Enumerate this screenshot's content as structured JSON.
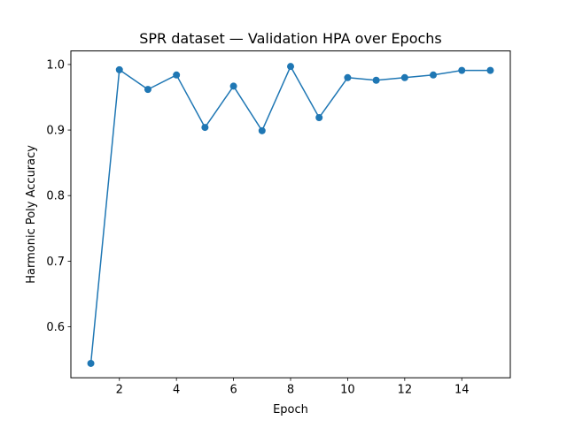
{
  "chart_data": {
    "type": "line",
    "title": "SPR dataset — Validation HPA over Epochs",
    "xlabel": "Epoch",
    "ylabel": "Harmonic Poly Accuracy",
    "xlim": [
      0.3,
      15.7
    ],
    "ylim": [
      0.5221,
      1.0207
    ],
    "xticks": [
      2,
      4,
      6,
      8,
      10,
      12,
      14
    ],
    "yticks": [
      0.6,
      0.7,
      0.8,
      0.9,
      1.0
    ],
    "ytick_labels": [
      "0.6",
      "0.7",
      "0.8",
      "0.9",
      "1.0"
    ],
    "grid": false,
    "legend": "none",
    "series": [
      {
        "color": "#1f77b4",
        "marker": "circle",
        "x": [
          1,
          2,
          3,
          4,
          5,
          6,
          7,
          8,
          9,
          10,
          11,
          12,
          13,
          14,
          15
        ],
        "y": [
          0.544,
          0.992,
          0.962,
          0.984,
          0.904,
          0.967,
          0.899,
          0.997,
          0.919,
          0.98,
          0.976,
          0.98,
          0.984,
          0.991,
          0.991
        ]
      }
    ]
  }
}
